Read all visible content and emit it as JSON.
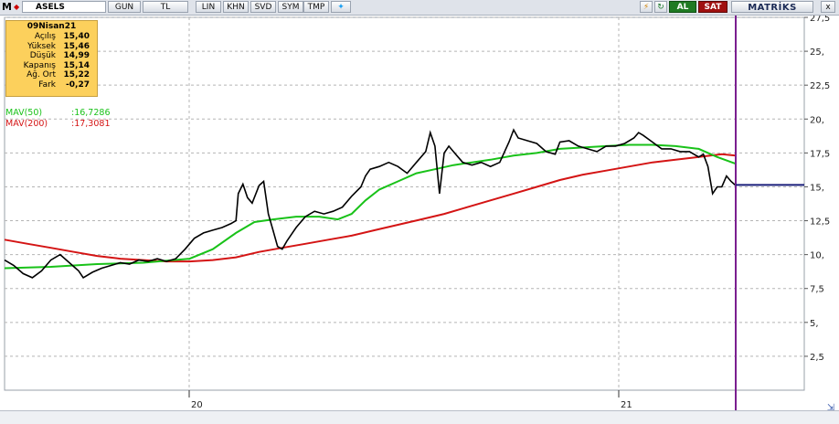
{
  "toolbar": {
    "logo": "M",
    "symbol": "ASELS",
    "period": "GUN",
    "currency": "TL",
    "scale": "LIN",
    "buttons": [
      "KHN",
      "SVD",
      "SYM",
      "TMP"
    ],
    "twitter_icon": "bird-icon",
    "flash_icon": "lightning-icon",
    "refresh_icon": "refresh-icon",
    "buy_label": "AL",
    "sell_label": "SAT",
    "brand": "MATRİKS",
    "close_label": "x"
  },
  "infobox": {
    "date": "09Nisan21",
    "rows": [
      {
        "label": "Açılış",
        "value": "15,40"
      },
      {
        "label": "Yüksek",
        "value": "15,46"
      },
      {
        "label": "Düşük",
        "value": "14,99"
      },
      {
        "label": "Kapanış",
        "value": "15,14"
      },
      {
        "label": "Ağ. Ort",
        "value": "15,22"
      },
      {
        "label": "Fark",
        "value": "-0,27"
      }
    ]
  },
  "indicators": [
    {
      "label": "MAV(50)",
      "value": ":16,7286",
      "color": "#19c219"
    },
    {
      "label": "MAV(200)",
      "value": ":17,3081",
      "color": "#d41414"
    }
  ],
  "chart_data": {
    "type": "line",
    "x_ticks": [
      "20",
      "21"
    ],
    "y_ticks": [
      "2,5",
      "5,",
      "7,5",
      "10,",
      "12,5",
      "15,",
      "17,5",
      "20,",
      "22,5",
      "25,",
      "27,5"
    ],
    "ylim": [
      0,
      27.5
    ],
    "grid": true,
    "price_color": "#000000",
    "cursor_line_color": "#7a1f8f",
    "last_price_line_color": "#1a1f7a",
    "last_price": 15.14,
    "price": [
      [
        0,
        9.6
      ],
      [
        4,
        9.2
      ],
      [
        8,
        8.6
      ],
      [
        12,
        8.3
      ],
      [
        16,
        8.8
      ],
      [
        20,
        9.6
      ],
      [
        24,
        10.0
      ],
      [
        28,
        9.4
      ],
      [
        32,
        8.8
      ],
      [
        34,
        8.3
      ],
      [
        38,
        8.7
      ],
      [
        42,
        9.0
      ],
      [
        46,
        9.2
      ],
      [
        50,
        9.4
      ],
      [
        54,
        9.3
      ],
      [
        58,
        9.6
      ],
      [
        62,
        9.5
      ],
      [
        66,
        9.7
      ],
      [
        70,
        9.5
      ],
      [
        74,
        9.7
      ],
      [
        78,
        10.4
      ],
      [
        82,
        11.2
      ],
      [
        86,
        11.6
      ],
      [
        90,
        11.8
      ],
      [
        94,
        12.0
      ],
      [
        98,
        12.3
      ],
      [
        100,
        12.5
      ],
      [
        101,
        14.5
      ],
      [
        103,
        15.2
      ],
      [
        105,
        14.2
      ],
      [
        107,
        13.8
      ],
      [
        110,
        15.1
      ],
      [
        112,
        15.4
      ],
      [
        114,
        13.0
      ],
      [
        116,
        11.8
      ],
      [
        118,
        10.6
      ],
      [
        120,
        10.4
      ],
      [
        122,
        11.0
      ],
      [
        126,
        12.0
      ],
      [
        130,
        12.8
      ],
      [
        134,
        13.2
      ],
      [
        138,
        13.0
      ],
      [
        142,
        13.2
      ],
      [
        146,
        13.5
      ],
      [
        150,
        14.3
      ],
      [
        154,
        15.0
      ],
      [
        156,
        15.8
      ],
      [
        158,
        16.3
      ],
      [
        162,
        16.5
      ],
      [
        166,
        16.8
      ],
      [
        170,
        16.5
      ],
      [
        174,
        16.0
      ],
      [
        178,
        16.8
      ],
      [
        182,
        17.6
      ],
      [
        184,
        19.0
      ],
      [
        186,
        18.0
      ],
      [
        188,
        14.5
      ],
      [
        190,
        17.5
      ],
      [
        192,
        18.0
      ],
      [
        194,
        17.6
      ],
      [
        196,
        17.2
      ],
      [
        198,
        16.8
      ],
      [
        202,
        16.6
      ],
      [
        206,
        16.8
      ],
      [
        210,
        16.5
      ],
      [
        214,
        16.8
      ],
      [
        218,
        18.3
      ],
      [
        220,
        19.2
      ],
      [
        222,
        18.6
      ],
      [
        226,
        18.4
      ],
      [
        230,
        18.2
      ],
      [
        234,
        17.6
      ],
      [
        238,
        17.4
      ],
      [
        240,
        18.3
      ],
      [
        244,
        18.4
      ],
      [
        248,
        18.0
      ],
      [
        252,
        17.8
      ],
      [
        256,
        17.6
      ],
      [
        260,
        18.0
      ],
      [
        264,
        18.0
      ],
      [
        268,
        18.2
      ],
      [
        272,
        18.6
      ],
      [
        274,
        19.0
      ],
      [
        276,
        18.8
      ],
      [
        280,
        18.3
      ],
      [
        284,
        17.8
      ],
      [
        288,
        17.8
      ],
      [
        292,
        17.6
      ],
      [
        296,
        17.6
      ],
      [
        300,
        17.2
      ],
      [
        302,
        17.4
      ],
      [
        304,
        16.5
      ],
      [
        306,
        14.5
      ],
      [
        308,
        15.0
      ],
      [
        310,
        15.0
      ],
      [
        312,
        15.8
      ],
      [
        314,
        15.4
      ],
      [
        316,
        15.1
      ]
    ],
    "mav50": [
      [
        0,
        9.0
      ],
      [
        20,
        9.1
      ],
      [
        40,
        9.3
      ],
      [
        60,
        9.4
      ],
      [
        80,
        9.7
      ],
      [
        90,
        10.4
      ],
      [
        100,
        11.6
      ],
      [
        108,
        12.4
      ],
      [
        116,
        12.6
      ],
      [
        126,
        12.8
      ],
      [
        136,
        12.8
      ],
      [
        144,
        12.6
      ],
      [
        150,
        13.0
      ],
      [
        156,
        14.0
      ],
      [
        162,
        14.8
      ],
      [
        170,
        15.4
      ],
      [
        178,
        16.0
      ],
      [
        186,
        16.3
      ],
      [
        194,
        16.6
      ],
      [
        202,
        16.8
      ],
      [
        210,
        17.0
      ],
      [
        220,
        17.3
      ],
      [
        230,
        17.5
      ],
      [
        240,
        17.8
      ],
      [
        250,
        17.9
      ],
      [
        260,
        18.0
      ],
      [
        270,
        18.1
      ],
      [
        280,
        18.1
      ],
      [
        290,
        18.0
      ],
      [
        300,
        17.8
      ],
      [
        308,
        17.2
      ],
      [
        316,
        16.7
      ]
    ],
    "mav200": [
      [
        0,
        11.1
      ],
      [
        10,
        10.8
      ],
      [
        20,
        10.5
      ],
      [
        30,
        10.2
      ],
      [
        40,
        9.9
      ],
      [
        50,
        9.7
      ],
      [
        60,
        9.6
      ],
      [
        70,
        9.5
      ],
      [
        80,
        9.5
      ],
      [
        90,
        9.6
      ],
      [
        100,
        9.8
      ],
      [
        110,
        10.2
      ],
      [
        120,
        10.5
      ],
      [
        130,
        10.8
      ],
      [
        140,
        11.1
      ],
      [
        150,
        11.4
      ],
      [
        160,
        11.8
      ],
      [
        170,
        12.2
      ],
      [
        180,
        12.6
      ],
      [
        190,
        13.0
      ],
      [
        200,
        13.5
      ],
      [
        210,
        14.0
      ],
      [
        220,
        14.5
      ],
      [
        230,
        15.0
      ],
      [
        240,
        15.5
      ],
      [
        250,
        15.9
      ],
      [
        260,
        16.2
      ],
      [
        270,
        16.5
      ],
      [
        280,
        16.8
      ],
      [
        290,
        17.0
      ],
      [
        300,
        17.2
      ],
      [
        310,
        17.4
      ],
      [
        316,
        17.3
      ]
    ]
  }
}
